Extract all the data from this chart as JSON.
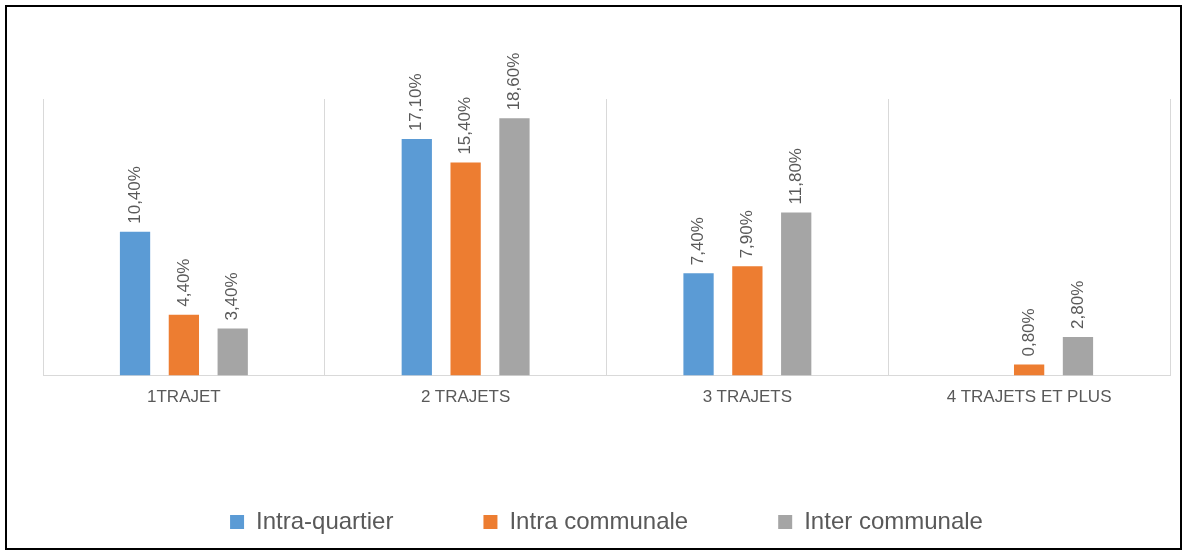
{
  "chart_data": {
    "type": "bar",
    "categories": [
      "1TRAJET",
      "2 TRAJETS",
      "3 TRAJETS",
      "4 TRAJETS ET PLUS"
    ],
    "series": [
      {
        "name": "Intra-quartier",
        "color": "#5b9bd5",
        "values": [
          10.4,
          17.1,
          7.4,
          null
        ],
        "value_labels": [
          "10,40%",
          "17,10%",
          "7,40%",
          null
        ]
      },
      {
        "name": "Intra communale",
        "color": "#ed7d31",
        "values": [
          4.4,
          15.4,
          7.9,
          0.8
        ],
        "value_labels": [
          "4,40%",
          "15,40%",
          "7,90%",
          "0,80%"
        ]
      },
      {
        "name": "Inter communale",
        "color": "#a5a5a5",
        "values": [
          3.4,
          18.6,
          11.8,
          2.8
        ],
        "value_labels": [
          "3,40%",
          "18,60%",
          "11,80%",
          "2,80%"
        ]
      }
    ],
    "grid": "x",
    "legend": "bottom"
  }
}
